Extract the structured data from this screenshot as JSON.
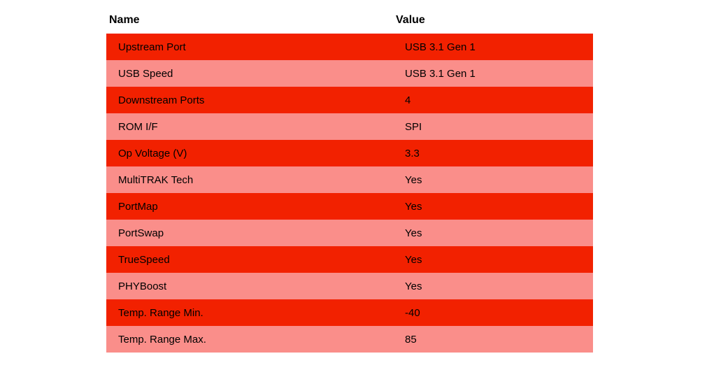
{
  "table": {
    "columns": [
      "Name",
      "Value"
    ],
    "rows": [
      {
        "name": "Upstream Port",
        "value": "USB 3.1 Gen 1"
      },
      {
        "name": "USB Speed",
        "value": "USB 3.1 Gen 1"
      },
      {
        "name": "Downstream Ports",
        "value": "4"
      },
      {
        "name": "ROM I/F",
        "value": "SPI"
      },
      {
        "name": "Op Voltage (V)",
        "value": "3.3"
      },
      {
        "name": "MultiTRAK Tech",
        "value": "Yes"
      },
      {
        "name": "PortMap",
        "value": "Yes"
      },
      {
        "name": "PortSwap",
        "value": "Yes"
      },
      {
        "name": "TrueSpeed",
        "value": "Yes"
      },
      {
        "name": "PHYBoost",
        "value": "Yes"
      },
      {
        "name": "Temp. Range Min.",
        "value": "-40"
      },
      {
        "name": "Temp. Range Max.",
        "value": "85"
      }
    ],
    "colors": {
      "row_odd": "#f22100",
      "row_even": "#fa8e8a",
      "text": "#000000",
      "background": "#ffffff"
    }
  }
}
